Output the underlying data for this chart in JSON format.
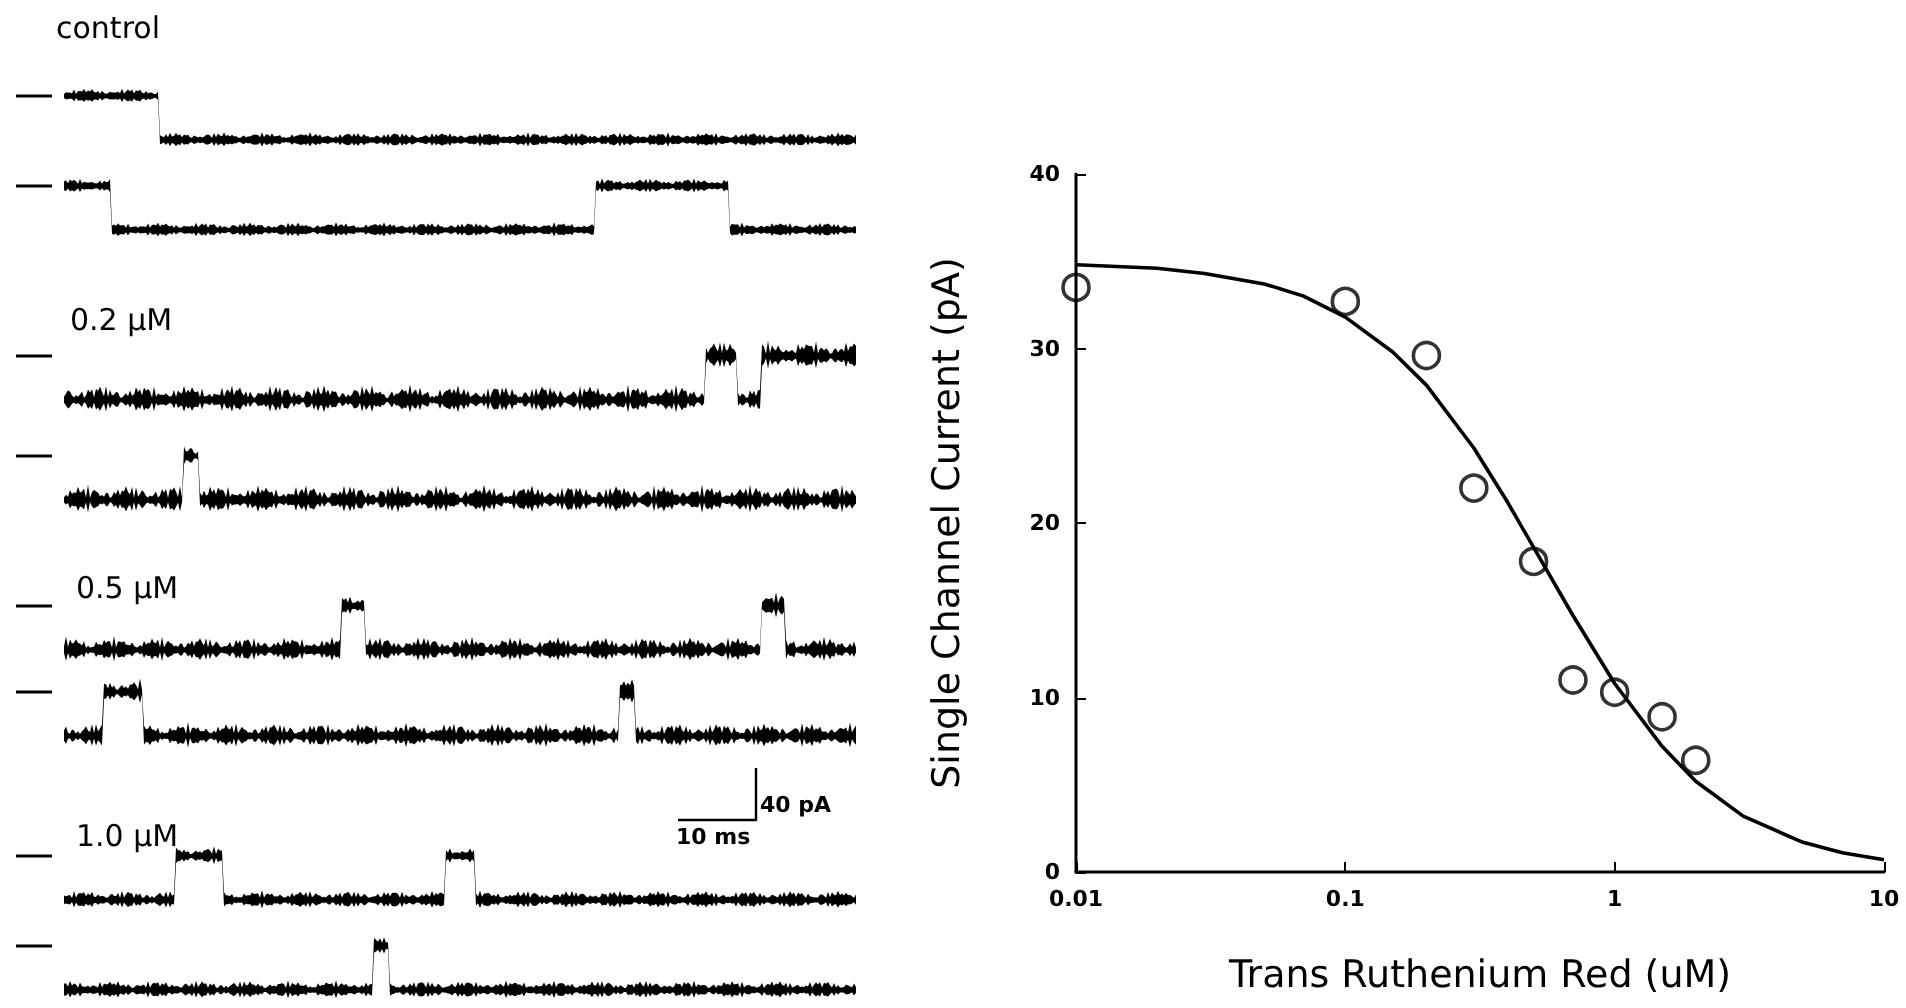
{
  "chart_data": [
    {
      "type": "other",
      "annotations": [
        "control",
        "0.2 μM",
        "0.5 μM",
        "1.0 μM",
        "40 pA",
        "10 ms"
      ]
    },
    {
      "type": "scatter",
      "xlabel": "Trans Ruthenium Red (uM)",
      "ylabel": "Single Channel Current (pA)",
      "log": "x",
      "xlim": [
        0.01,
        10
      ],
      "xticks": [
        0.01,
        0.1,
        1,
        10
      ],
      "ylim": [
        0,
        40
      ],
      "yticks": [
        0,
        10,
        20,
        30,
        40
      ],
      "marker": "circle",
      "series": [
        {
          "type": "scatter",
          "color": "#000000",
          "x": [
            0.01,
            0.1,
            0.2,
            0.3,
            0.5,
            0.7,
            1,
            1.5,
            2
          ],
          "values": [
            33.5,
            32.7,
            29.6,
            22.0,
            17.8,
            11.0,
            10.3,
            8.9,
            6.4
          ]
        },
        {
          "type": "line",
          "color": "#000000",
          "marker": "none",
          "line_style": "solid",
          "x": [
            0.01,
            0.02,
            0.03,
            0.05,
            0.07,
            0.1,
            0.15,
            0.2,
            0.3,
            0.4,
            0.5,
            0.7,
            1,
            1.5,
            2,
            3,
            5,
            7,
            10
          ],
          "values": [
            34.8,
            34.6,
            34.3,
            33.7,
            33.0,
            31.8,
            29.8,
            27.9,
            24.3,
            21.2,
            18.6,
            14.7,
            10.8,
            7.2,
            5.2,
            3.2,
            1.7,
            1.1,
            0.7
          ]
        }
      ]
    }
  ]
}
